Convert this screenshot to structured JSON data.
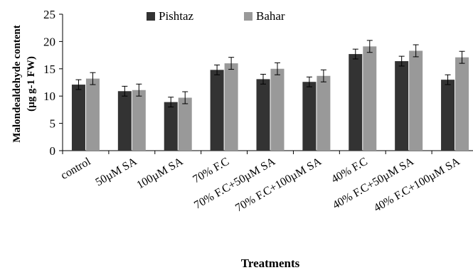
{
  "chart_data": {
    "type": "bar",
    "title": "",
    "xlabel": "Treatments",
    "ylabel_line1": "Malondealdehyde content",
    "ylabel_line2": "(µg g-1 FW)",
    "ylim": [
      0,
      25
    ],
    "yticks": [
      0,
      5,
      10,
      15,
      20,
      25
    ],
    "grid": false,
    "legend_position": "top-center",
    "categories": [
      "control",
      "50µM SA",
      "100µM SA",
      "70% F.C",
      "70% F.C+50µM SA",
      "70% F.C+100µM SA",
      "40% F.C",
      "40% F.C+50µM SA",
      "40% F.C+100µM SA"
    ],
    "series": [
      {
        "name": "Pishtaz",
        "color": "#333333",
        "values": [
          12.1,
          10.9,
          8.9,
          14.8,
          13.1,
          12.6,
          17.7,
          16.4,
          13.0
        ],
        "errors": [
          0.9,
          0.9,
          0.9,
          0.9,
          0.9,
          0.9,
          0.9,
          0.9,
          0.9
        ]
      },
      {
        "name": "Bahar",
        "color": "#999999",
        "values": [
          13.2,
          11.1,
          9.7,
          16.0,
          15.0,
          13.7,
          19.1,
          18.3,
          17.1
        ],
        "errors": [
          1.1,
          1.1,
          1.1,
          1.1,
          1.1,
          1.1,
          1.1,
          1.1,
          1.1
        ]
      }
    ]
  }
}
